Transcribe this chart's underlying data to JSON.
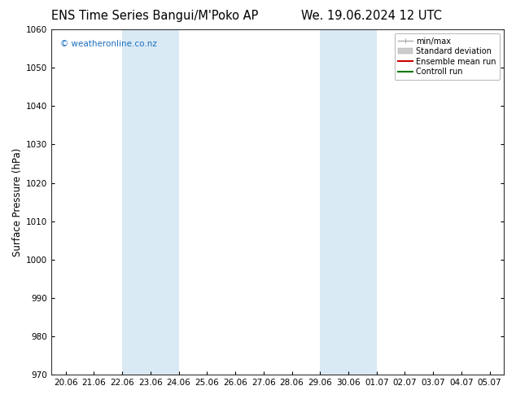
{
  "title_left": "ENS Time Series Bangui/M'Poko AP",
  "title_right": "We. 19.06.2024 12 UTC",
  "ylabel": "Surface Pressure (hPa)",
  "ylim": [
    970,
    1060
  ],
  "yticks": [
    970,
    980,
    990,
    1000,
    1010,
    1020,
    1030,
    1040,
    1050,
    1060
  ],
  "xtick_labels": [
    "20.06",
    "21.06",
    "22.06",
    "23.06",
    "24.06",
    "25.06",
    "26.06",
    "27.06",
    "28.06",
    "29.06",
    "30.06",
    "01.07",
    "02.07",
    "03.07",
    "04.07",
    "05.07"
  ],
  "shaded_bands": [
    {
      "xstart": 2,
      "xend": 4
    },
    {
      "xstart": 9,
      "xend": 11
    }
  ],
  "band_color": "#daeaf5",
  "background_color": "#ffffff",
  "legend_entries": [
    {
      "label": "min/max",
      "color": "#aaaaaa",
      "lw": 1.0
    },
    {
      "label": "Standard deviation",
      "color": "#cccccc",
      "lw": 4.0
    },
    {
      "label": "Ensemble mean run",
      "color": "#cc0000",
      "lw": 1.5
    },
    {
      "label": "Controll run",
      "color": "#007700",
      "lw": 1.5
    }
  ],
  "watermark": "© weatheronline.co.nz",
  "watermark_color": "#1a6ebf",
  "title_fontsize": 10.5,
  "tick_fontsize": 7.5,
  "ylabel_fontsize": 8.5,
  "legend_fontsize": 7.0,
  "figsize": [
    6.34,
    4.9
  ],
  "dpi": 100
}
